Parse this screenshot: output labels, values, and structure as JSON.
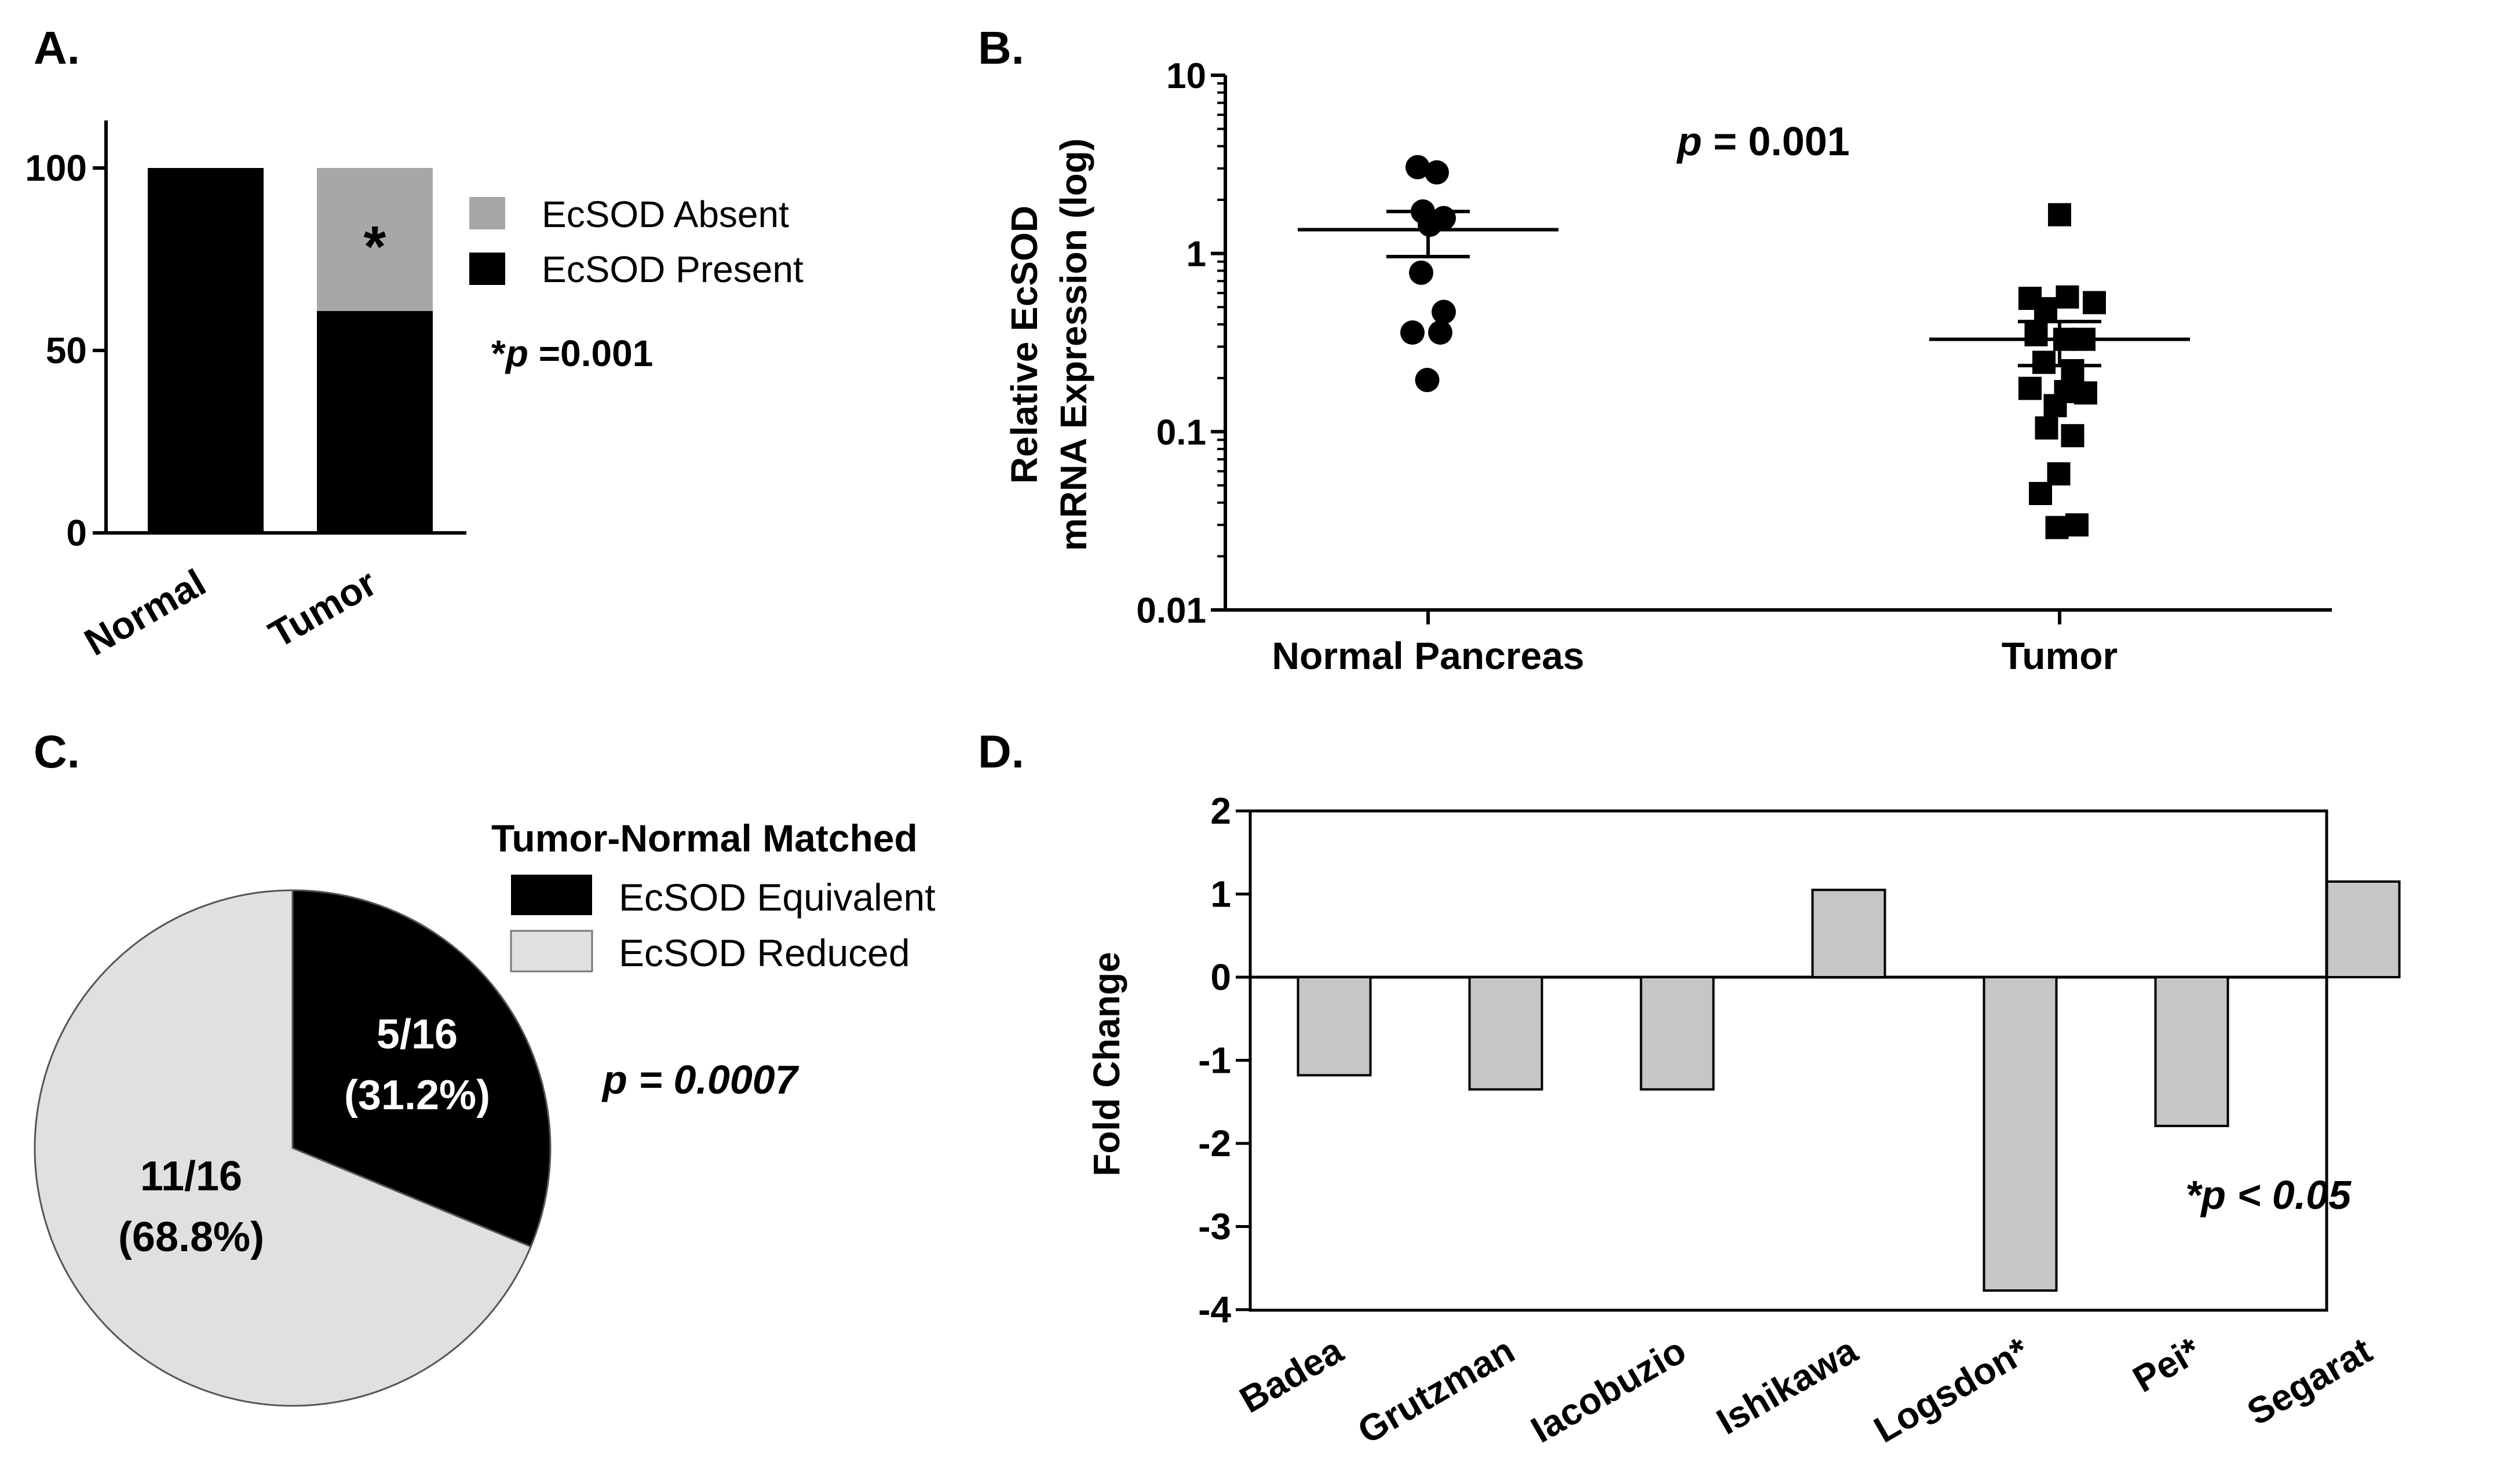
{
  "chart_data": [
    {
      "panel": "A.",
      "type": "bar",
      "stacked": true,
      "categories": [
        "Normal",
        "Tumor"
      ],
      "series": [
        {
          "name": "EcSOD Present",
          "color": "#000000",
          "values": [
            100,
            60.8
          ]
        },
        {
          "name": "EcSOD Absent",
          "color": "#a7a7a7",
          "values": [
            0,
            39.2
          ]
        }
      ],
      "y_ticks": [
        "0",
        "50",
        "100"
      ],
      "ylim": [
        0,
        110
      ],
      "star": "*",
      "pvalue_star": "*",
      "pvalue_p": "p",
      "pvalue_rest": " =0.001"
    },
    {
      "panel": "B.",
      "type": "scatter",
      "yscale": "log",
      "ylim": [
        0.01,
        10
      ],
      "ylabel_line1": "Relative EcSOD",
      "ylabel_line2": "mRNA Expression (log)",
      "y_ticks": [
        "0.01",
        "0.1",
        "1",
        "10"
      ],
      "categories": [
        "Normal Pancreas",
        "Tumor"
      ],
      "groups": [
        {
          "name": "Normal Pancreas",
          "marker": "circle",
          "mean": 1.36,
          "sem_low": 0.96,
          "sem_high": 1.72,
          "points": [
            {
              "dx": -0.12,
              "y": 3.05
            },
            {
              "dx": 0.1,
              "y": 2.85
            },
            {
              "dx": -0.06,
              "y": 1.72
            },
            {
              "dx": 0.18,
              "y": 1.58
            },
            {
              "dx": 0.02,
              "y": 1.45
            },
            {
              "dx": -0.08,
              "y": 0.78
            },
            {
              "dx": 0.18,
              "y": 0.47
            },
            {
              "dx": -0.18,
              "y": 0.36
            },
            {
              "dx": 0.14,
              "y": 0.36
            },
            {
              "dx": -0.01,
              "y": 0.195
            }
          ]
        },
        {
          "name": "Tumor",
          "marker": "square",
          "mean": 0.33,
          "sem_low": 0.235,
          "sem_high": 0.415,
          "points": [
            {
              "dx": 0.0,
              "y": 1.65
            },
            {
              "dx": -0.34,
              "y": 0.56
            },
            {
              "dx": -0.16,
              "y": 0.49
            },
            {
              "dx": 0.09,
              "y": 0.57
            },
            {
              "dx": 0.4,
              "y": 0.53
            },
            {
              "dx": -0.27,
              "y": 0.35
            },
            {
              "dx": 0.06,
              "y": 0.33
            },
            {
              "dx": 0.28,
              "y": 0.33
            },
            {
              "dx": -0.18,
              "y": 0.245
            },
            {
              "dx": 0.15,
              "y": 0.22
            },
            {
              "dx": -0.34,
              "y": 0.175
            },
            {
              "dx": -0.05,
              "y": 0.14
            },
            {
              "dx": 0.07,
              "y": 0.168
            },
            {
              "dx": 0.3,
              "y": 0.165
            },
            {
              "dx": -0.15,
              "y": 0.105
            },
            {
              "dx": 0.15,
              "y": 0.095
            },
            {
              "dx": -0.01,
              "y": 0.058
            },
            {
              "dx": -0.22,
              "y": 0.045
            },
            {
              "dx": 0.2,
              "y": 0.03
            },
            {
              "dx": -0.03,
              "y": 0.029
            }
          ]
        }
      ],
      "pvalue_p": "p",
      "pvalue_rest": " = 0.001"
    },
    {
      "panel": "C.",
      "type": "pie",
      "legend_title": "Tumor-Normal Matched",
      "slices": [
        {
          "name": "EcSOD Equivalent",
          "value": 5,
          "total": 16,
          "percent": 31.2,
          "label_fraction": "5/16",
          "label_percent": "(31.2%)",
          "color": "#000000",
          "text_color": "#ffffff"
        },
        {
          "name": "EcSOD Reduced",
          "value": 11,
          "total": 16,
          "percent": 68.8,
          "label_fraction": "11/16",
          "label_percent": "(68.8%)",
          "color": "#e0e0e0",
          "text_color": "#000000"
        }
      ],
      "pvalue_text": "p = 0.0007"
    },
    {
      "panel": "D.",
      "type": "bar",
      "ylabel": "Fold Change",
      "ylim": [
        -4,
        2
      ],
      "y_ticks": [
        "2",
        "1",
        "0",
        "-1",
        "-2",
        "-3",
        "-4"
      ],
      "bar_color": "#c6c6c6",
      "categories": [
        "Badea",
        "Grutzman",
        "Iacobuzio",
        "Ishikawa",
        "Logsdon*",
        "Pei*",
        "Segarat"
      ],
      "values": [
        -1.18,
        -1.35,
        -1.35,
        1.05,
        -3.77,
        -1.79,
        1.15
      ],
      "pvalue_text": "*p < 0.05"
    }
  ]
}
